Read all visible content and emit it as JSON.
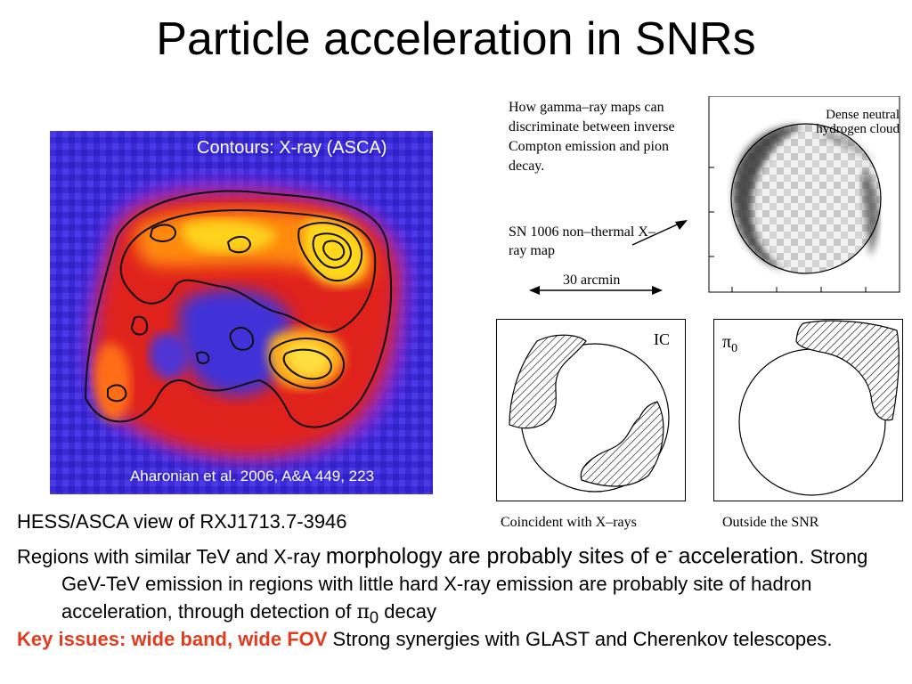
{
  "title": "Particle acceleration in SNRs",
  "heatmap": {
    "caption_top": "Contours: X-ray (ASCA)",
    "caption_bottom": "Aharonian et al. 2006, A&A 449, 223"
  },
  "diagram": {
    "description": "How gamma–ray maps can discriminate between inverse Compton emission and pion decay.",
    "sn_label": "SN 1006 non–thermal X–ray map",
    "scale_label": "30 arcmin",
    "cloud_label": "Dense neutral hydrogen cloud",
    "ic_label": "IC",
    "pi_symbol": "π",
    "pi_subscript": "0",
    "caption_ic": "Coincident with X–rays",
    "caption_pi": "Outside the SNR"
  },
  "bullets": {
    "b1": "HESS/ASCA view of RXJ1713.7-3946",
    "b2_part1": "Regions with similar TeV and X-ray ",
    "b2_part2": "morphology are probably sites of e",
    "b2_sup": "-",
    "b2_part3": "acceleration.",
    "b2_part4": " Strong GeV-TeV emission in regions with little hard X-ray emission are probably site of hadron acceleration, through detection of ",
    "b2_pi": "π",
    "b2_pi_sub": "0",
    "b2_part5": " decay",
    "b3_key": "Key issues: wide band, wide FOV",
    "b3_rest": " Strong synergies with GLAST and Cherenkov telescopes."
  },
  "colors": {
    "key_issue": "#e23c1e",
    "heatmap_background": "#3b2ad8"
  }
}
